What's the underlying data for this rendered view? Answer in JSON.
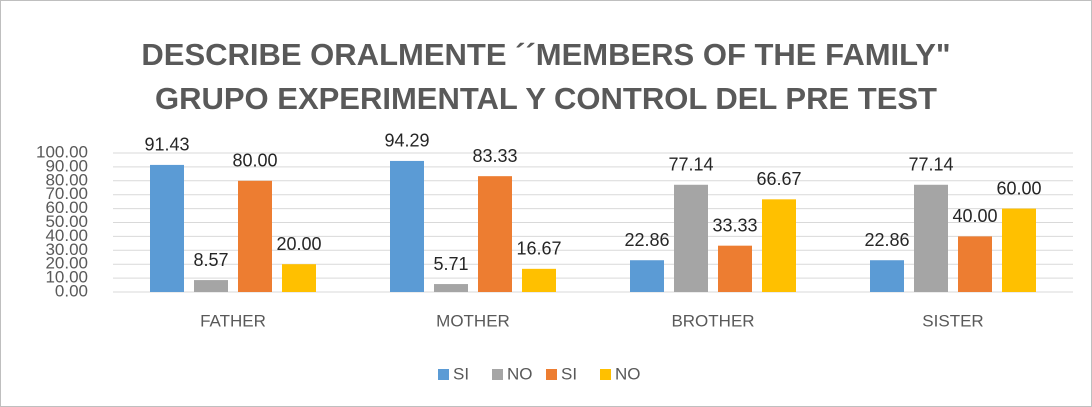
{
  "chart_data": {
    "type": "bar",
    "title": [
      "DESCRIBE ORALMENTE ´´MEMBERS OF THE FAMILY\"",
      "GRUPO EXPERIMENTAL Y CONTROL DEL PRE TEST"
    ],
    "categories": [
      "FATHER",
      "MOTHER",
      "BROTHER",
      "SISTER"
    ],
    "series": [
      {
        "name": "SI",
        "color": "#5b9bd5",
        "values": [
          91.43,
          94.29,
          22.86,
          22.86
        ],
        "value_labels": [
          "91.43",
          "94.29",
          "22.86",
          "22.86"
        ]
      },
      {
        "name": "NO",
        "color": "#a5a5a5",
        "values": [
          8.57,
          5.71,
          77.14,
          77.14
        ],
        "value_labels": [
          "8.57",
          "5.71",
          "77.14",
          "77.14"
        ]
      },
      {
        "name": "SI",
        "color": "#ed7d31",
        "values": [
          80,
          83.33,
          33.33,
          40
        ],
        "value_labels": [
          "80.00",
          "83.33",
          "33.33",
          "40.00"
        ]
      },
      {
        "name": "NO",
        "color": "#ffc000",
        "values": [
          20,
          16.67,
          66.67,
          60
        ],
        "value_labels": [
          "20.00",
          "16.67",
          "66.67",
          "60.00"
        ]
      }
    ],
    "ylim": [
      0,
      100
    ],
    "yticks": [
      {
        "value": 0,
        "label": "0.00"
      },
      {
        "value": 10,
        "label": "10.00"
      },
      {
        "value": 20,
        "label": "20.00"
      },
      {
        "value": 30,
        "label": "30.00"
      },
      {
        "value": 40,
        "label": "40.00"
      },
      {
        "value": 50,
        "label": "50.00"
      },
      {
        "value": 60,
        "label": "60.00"
      },
      {
        "value": 70,
        "label": "70.00"
      },
      {
        "value": 80,
        "label": "80.00"
      },
      {
        "value": 90,
        "label": "90.00"
      },
      {
        "value": 100,
        "label": "100.00"
      }
    ],
    "grid": true,
    "legend": "bottom"
  }
}
